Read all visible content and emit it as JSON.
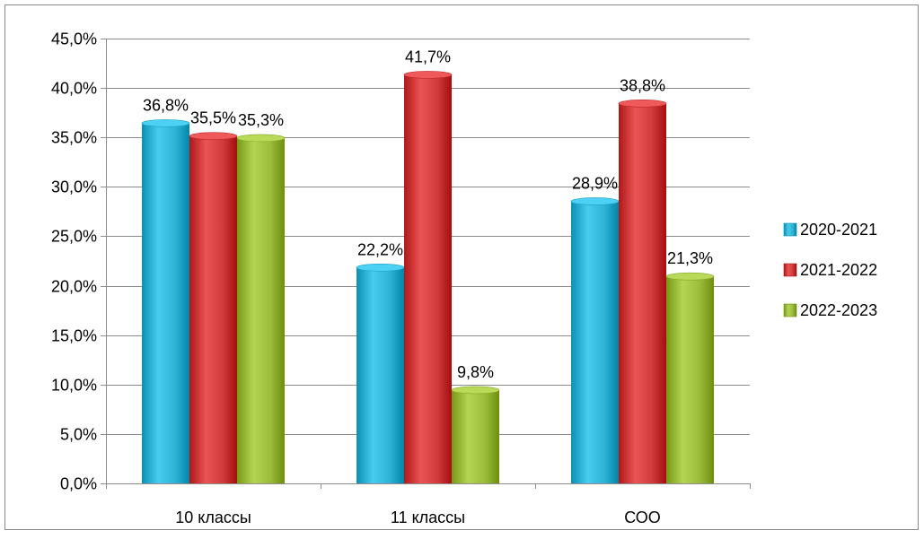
{
  "chart_data": {
    "type": "bar",
    "categories": [
      "10 классы",
      "11 классы",
      "СОО"
    ],
    "series": [
      {
        "name": "2020-2021",
        "values": [
          36.8,
          22.2,
          28.9
        ],
        "labels": [
          "36,8%",
          "22,2%",
          "28,9%"
        ],
        "color": "#2EB3D6"
      },
      {
        "name": "2021-2022",
        "values": [
          35.5,
          41.7,
          38.8
        ],
        "labels": [
          "35,5%",
          "41,7%",
          "38,8%"
        ],
        "color": "#D13B3B"
      },
      {
        "name": "2022-2023",
        "values": [
          35.3,
          9.8,
          21.3
        ],
        "labels": [
          "35,3%",
          "9,8%",
          "21,3%"
        ],
        "color": "#9BBB3B"
      }
    ],
    "y_ticks": [
      "0,0%",
      "5,0%",
      "10,0%",
      "15,0%",
      "20,0%",
      "25,0%",
      "30,0%",
      "35,0%",
      "40,0%",
      "45,0%"
    ],
    "ylim": [
      0,
      45
    ],
    "grid": true,
    "legend": "right",
    "title": "",
    "xlabel": "",
    "ylabel": ""
  }
}
